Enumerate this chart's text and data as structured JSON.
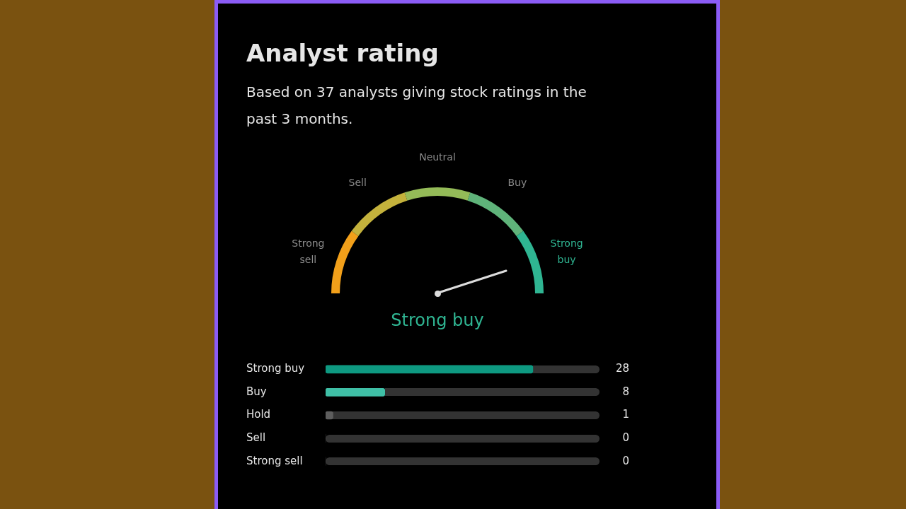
{
  "chart_data": [
    {
      "type": "donut",
      "title": "Analyst rating",
      "subtitle": "Based on 37 analysts giving stock ratings in the past 3 months.",
      "categories": [
        "Strong sell",
        "Sell",
        "Neutral",
        "Buy",
        "Strong buy"
      ],
      "values": [
        20,
        20,
        20,
        20,
        20
      ],
      "colors": [
        "#f2a01a",
        "#c4b23c",
        "#94bb58",
        "#5fb37a",
        "#2fb592"
      ],
      "needle": "Strong buy",
      "annotations": [
        "Strong buy"
      ],
      "legend": false
    },
    {
      "type": "bar",
      "orientation": "horizontal",
      "categories": [
        "Strong buy",
        "Buy",
        "Hold",
        "Sell",
        "Strong sell"
      ],
      "values": [
        28,
        8,
        1,
        0,
        0
      ],
      "colors": [
        "#0e9981",
        "#3fbfa6",
        "#5e5e5e",
        "#5e5e5e",
        "#5e5e5e"
      ],
      "xlim": [
        0,
        37
      ],
      "tick_labels": "y",
      "data_labels": true,
      "legend": false
    }
  ]
}
